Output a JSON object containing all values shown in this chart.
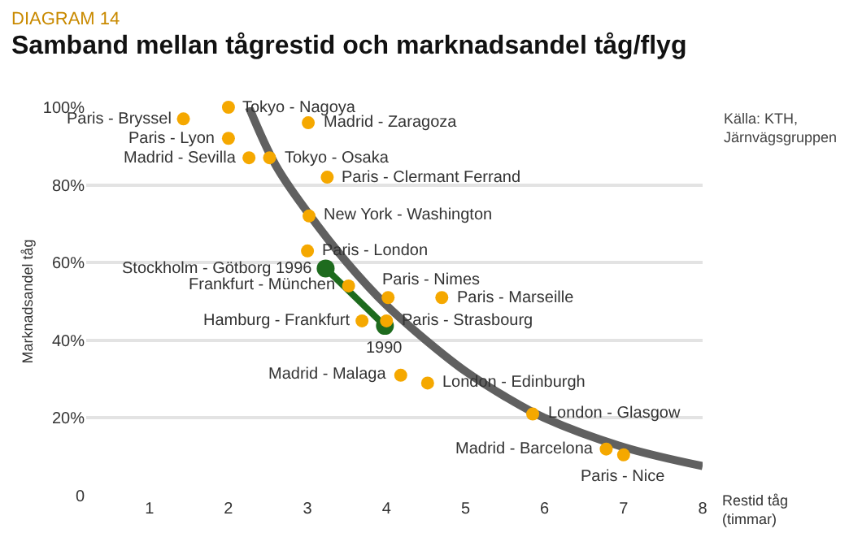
{
  "chart_data": {
    "type": "scatter",
    "subtitle": "DIAGRAM 14",
    "title": "Samband mellan tågrestid och marknadsandel tåg/flyg",
    "xlabel": "Restid tåg (timmar)",
    "ylabel": "Marknadsandel tåg",
    "xlim": [
      0.2,
      8
    ],
    "xticks": [
      1,
      2,
      3,
      4,
      5,
      6,
      7,
      8
    ],
    "ylim": [
      0,
      100
    ],
    "yticks": [
      0,
      {
        "value": 20,
        "label": "20%"
      },
      {
        "value": 40,
        "label": "40%"
      },
      {
        "value": 60,
        "label": "60%"
      },
      {
        "value": 80,
        "label": "80%"
      },
      {
        "value": 100,
        "label": "100%"
      }
    ],
    "grid": "y",
    "series": [
      {
        "type": "line",
        "color": "#606060",
        "marker": "none",
        "x": [
          2.26,
          2.6,
          3.0,
          3.5,
          4.0,
          4.5,
          5.0,
          5.5,
          6.0,
          7.0,
          8.0
        ],
        "values": [
          100,
          85,
          73,
          60,
          49,
          40,
          32,
          25.5,
          20,
          12.5,
          7.6
        ]
      },
      {
        "color": "#f5a800",
        "marker": "circle",
        "x": [
          2.0,
          1.43,
          2.0,
          2.26,
          2.52,
          3.01,
          3.25,
          3.02,
          3.0,
          3.52,
          4.02,
          4.7,
          4.0,
          3.69,
          4.18,
          4.52,
          5.85,
          6.78,
          7.0
        ],
        "values": [
          100,
          97,
          92,
          87,
          87,
          96,
          82,
          72,
          63,
          54,
          51,
          51,
          45,
          45,
          31,
          29,
          21,
          12,
          10.5
        ]
      },
      {
        "type": "line",
        "color": "#1e6b1e",
        "marker": "circle",
        "x": [
          3.98,
          3.23
        ],
        "values": [
          43.7,
          58.5
        ]
      }
    ],
    "annotations": [
      {
        "text": "Tokyo - Nagoya",
        "x": 2.0,
        "y": 100
      },
      {
        "text": "Paris - Bryssel",
        "x": 1.43,
        "y": 97
      },
      {
        "text": "Paris - Lyon",
        "x": 2.0,
        "y": 92
      },
      {
        "text": "Madrid - Sevilla",
        "x": 2.26,
        "y": 87
      },
      {
        "text": "Tokyo - Osaka",
        "x": 2.52,
        "y": 87
      },
      {
        "text": "Madrid - Zaragoza",
        "x": 3.01,
        "y": 96
      },
      {
        "text": "Paris - Clermant Ferrand",
        "x": 3.25,
        "y": 82
      },
      {
        "text": "New York - Washington",
        "x": 3.02,
        "y": 72
      },
      {
        "text": "Paris - London",
        "x": 3.0,
        "y": 63
      },
      {
        "text": "Frankfurt - München",
        "x": 3.52,
        "y": 54
      },
      {
        "text": "Paris - Nimes",
        "x": 4.02,
        "y": 51
      },
      {
        "text": "Paris - Marseille",
        "x": 4.7,
        "y": 51
      },
      {
        "text": "Paris - Strasbourg",
        "x": 4.0,
        "y": 45
      },
      {
        "text": "Hamburg - Frankfurt",
        "x": 3.69,
        "y": 45
      },
      {
        "text": "Madrid - Malaga",
        "x": 4.18,
        "y": 31
      },
      {
        "text": "London - Edinburgh",
        "x": 4.52,
        "y": 29
      },
      {
        "text": "London - Glasgow",
        "x": 5.85,
        "y": 21
      },
      {
        "text": "Madrid - Barcelona",
        "x": 6.78,
        "y": 12
      },
      {
        "text": "Paris - Nice",
        "x": 7.0,
        "y": 10.5
      },
      {
        "text": "Stockholm - Götborg 1996",
        "x": 3.23,
        "y": 58.5
      },
      {
        "text": "1990",
        "x": 3.98,
        "y": 43.7
      },
      "Källa: KTH, Järnvägsgruppen"
    ]
  }
}
